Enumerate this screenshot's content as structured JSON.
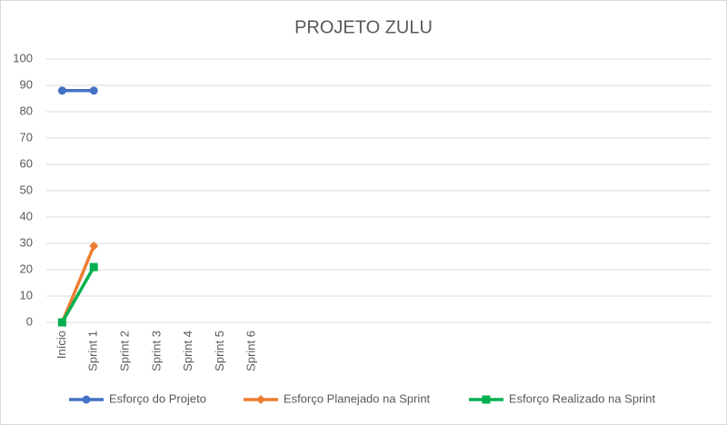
{
  "chart_data": {
    "type": "line",
    "title": "PROJETO ZULU",
    "categories": [
      "Início",
      "Sprint 1",
      "Sprint 2",
      "Sprint 3",
      "Sprint 4",
      "Sprint 5",
      "Sprint 6",
      null,
      null,
      null,
      null,
      null,
      null,
      null,
      null,
      null,
      null,
      null,
      null,
      null,
      null
    ],
    "series": [
      {
        "name": "Esforço do Projeto",
        "color": "#4472c4",
        "marker": "circle",
        "values": [
          88,
          88,
          null,
          null,
          null,
          null,
          null,
          null,
          null,
          null,
          null,
          null,
          null,
          null,
          null,
          null,
          null,
          null,
          null,
          null,
          null
        ]
      },
      {
        "name": "Esforço Planejado na Sprint",
        "color": "#ed7d31",
        "marker": "diamond",
        "values": [
          0,
          29,
          null,
          null,
          null,
          null,
          null,
          null,
          null,
          null,
          null,
          null,
          null,
          null,
          null,
          null,
          null,
          null,
          null,
          null,
          null
        ]
      },
      {
        "name": "Esforço Realizado na Sprint",
        "color": "#00b050",
        "marker": "square",
        "values": [
          0,
          21,
          null,
          null,
          null,
          null,
          null,
          null,
          null,
          null,
          null,
          null,
          null,
          null,
          null,
          null,
          null,
          null,
          null,
          null,
          null
        ]
      }
    ],
    "ylim": [
      0,
      100
    ],
    "yticks": [
      0,
      10,
      20,
      30,
      40,
      50,
      60,
      70,
      80,
      90,
      100
    ],
    "grid": true,
    "legend": "bottom"
  }
}
